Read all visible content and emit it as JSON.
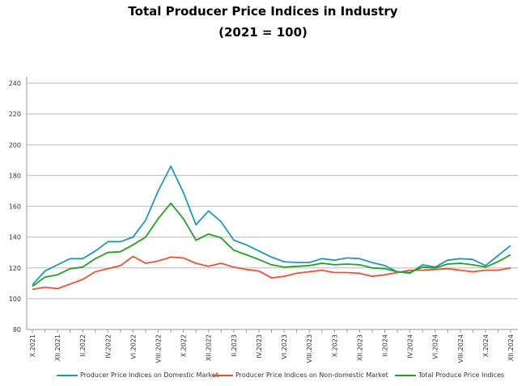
{
  "chart_data": {
    "type": "line",
    "title": "Total Producer Price Indices in Industry",
    "subtitle": "(2021 = 100)",
    "xlabel": "",
    "ylabel": "",
    "ylim": [
      80,
      240
    ],
    "yticks": [
      80,
      100,
      120,
      140,
      160,
      180,
      200,
      220,
      240
    ],
    "grid": true,
    "legend": "bottom",
    "x": [
      "X.2021",
      "XI.2021",
      "XII.2021",
      "I.2022",
      "II.2022",
      "III.2022",
      "IV.2022",
      "V.2022",
      "VI.2022",
      "VII.2022",
      "VIII.2022",
      "IX.2022",
      "X.2022",
      "XI.2022",
      "XII.2022",
      "I.2023",
      "II.2023",
      "III.2023",
      "IV.2023",
      "V.2023",
      "VI.2023",
      "VII.2023",
      "VIII.2023",
      "IX.2023",
      "X.2023",
      "XI.2023",
      "XII.2023",
      "I.2024",
      "II.2024",
      "III.2024",
      "IV.2024",
      "V.2024",
      "VI.2024",
      "VII.2024",
      "VIII.2024",
      "IX.2024",
      "X.2024",
      "XI.2024",
      "XII.2024"
    ],
    "xtick_labels": [
      "X.2021",
      "XII.2021",
      "II.2022",
      "IV.2022",
      "VI.2022",
      "VIII.2022",
      "X.2022",
      "XII.2022",
      "II.2023",
      "IV.2023",
      "VI.2023",
      "VIII.2023",
      "X.2023",
      "XII.2023",
      "II.2024",
      "IV.2024",
      "VI.2024",
      "VIII.2024",
      "X.2024",
      "XII.2024"
    ],
    "series": [
      {
        "name": "Producer Price Indices on Domestic Market",
        "color": "#1a9bb8",
        "values": [
          109,
          118,
          122,
          126,
          126,
          131,
          137,
          137,
          140,
          151,
          170,
          186,
          169,
          148,
          157,
          150,
          138,
          135,
          131,
          127,
          124,
          123.5,
          123.5,
          126,
          125,
          126.5,
          126,
          123.5,
          121.5,
          117.5,
          116.5,
          122,
          120.5,
          125,
          126,
          125.5,
          121.5,
          128,
          134.5
        ]
      },
      {
        "name": "Producer Price Indices on Non-domestic Market",
        "color": "#f0502a",
        "values": [
          106,
          107.5,
          106.5,
          109.5,
          112.5,
          117.5,
          119.5,
          121.5,
          127.5,
          123,
          124.5,
          127,
          126.5,
          123,
          121,
          123,
          120.5,
          119,
          118,
          113.5,
          114.5,
          116.5,
          117.5,
          118.5,
          117,
          117,
          116.5,
          114.5,
          115.5,
          117,
          118.5,
          118.5,
          119,
          119.5,
          118.5,
          117.5,
          118.5,
          118.5,
          120
        ]
      },
      {
        "name": "Total Produce Price Indices",
        "color": "#22a022",
        "values": [
          108,
          114,
          115.5,
          119.5,
          120.5,
          126,
          130,
          130.5,
          135,
          140,
          152,
          162,
          152,
          138,
          142,
          139.5,
          131.5,
          128.5,
          125.5,
          122,
          120.5,
          121,
          121.5,
          123,
          122,
          122.5,
          122,
          120,
          119.5,
          117.5,
          117,
          120.5,
          120,
          122.5,
          123,
          122,
          120.5,
          124,
          128.5
        ]
      }
    ]
  }
}
